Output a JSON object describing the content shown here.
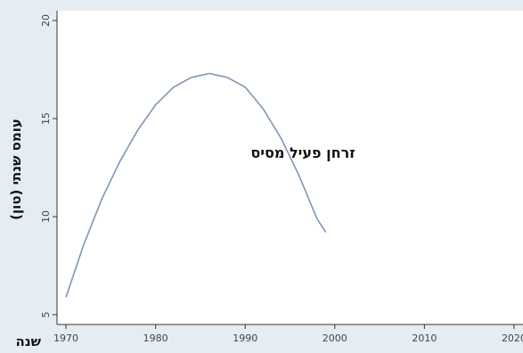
{
  "chart_data": {
    "type": "line",
    "xlabel": "שנה",
    "ylabel": "עומס שנתי (טון)",
    "annotations": [
      {
        "text": "זרחן פעיל מסיס",
        "x": 1993,
        "y": 14.2
      }
    ],
    "xlim": [
      1969,
      2021
    ],
    "ylim": [
      4.5,
      20.5
    ],
    "xticks": [
      "1970",
      "1980",
      "1990",
      "2000",
      "2010",
      "2020"
    ],
    "yticks": [
      "5",
      "10",
      "15",
      "20"
    ],
    "grid": false,
    "legend": "none",
    "series": [
      {
        "color": "#7f95b6",
        "x": [
          1970,
          1972,
          1974,
          1976,
          1978,
          1980,
          1982,
          1984,
          1986,
          1988,
          1990,
          1992,
          1994,
          1996,
          1998,
          1999
        ],
        "y": [
          5.9,
          8.6,
          10.9,
          12.8,
          14.4,
          15.7,
          16.6,
          17.1,
          17.3,
          17.1,
          16.6,
          15.5,
          14.0,
          12.1,
          9.9,
          9.2
        ]
      }
    ],
    "colors": {
      "background": "#ffffff",
      "plot_background": "#ffffff",
      "frame": "#e5edf3",
      "axis": "#333333"
    }
  }
}
